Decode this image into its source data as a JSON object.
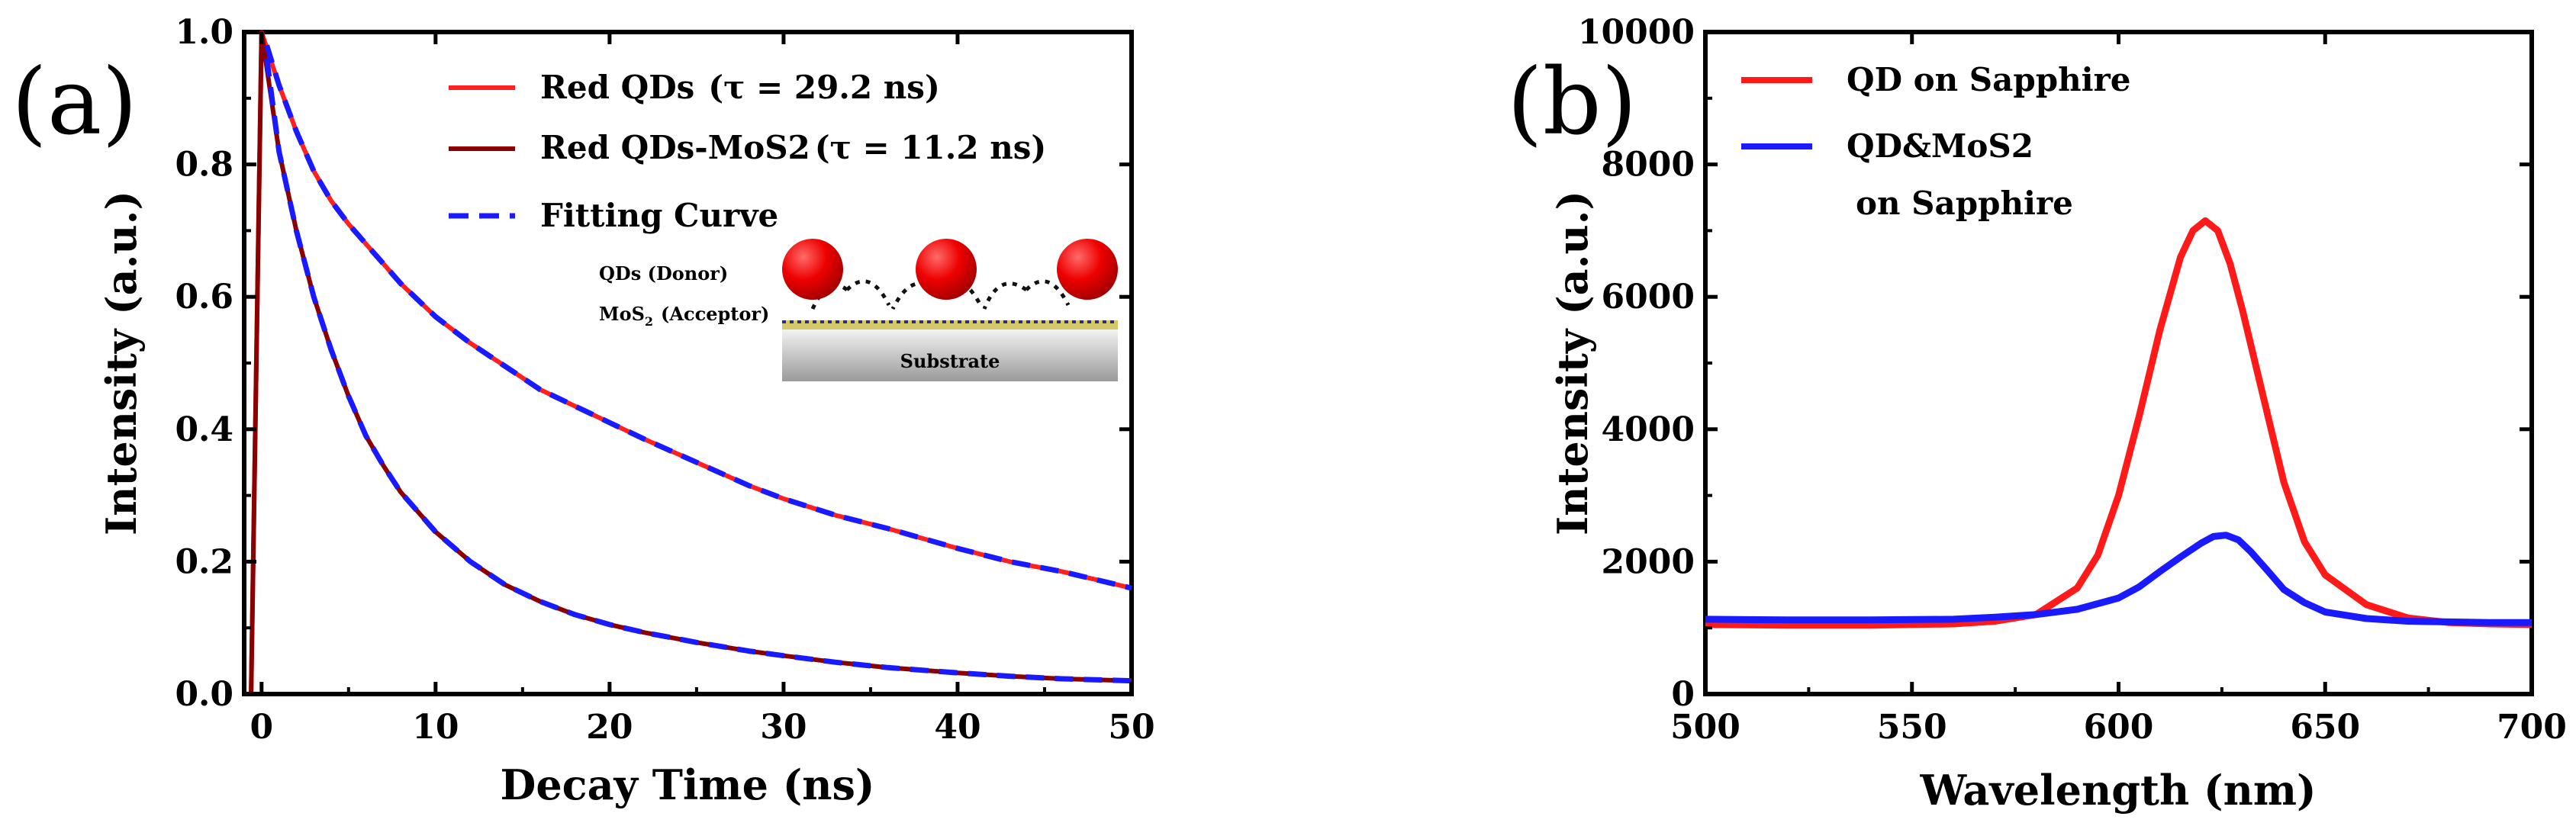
{
  "chart_data": [
    {
      "panel_label": "(a)",
      "type": "line",
      "xlabel": "Decay Time (ns)",
      "ylabel": "Intensity (a.u.)",
      "xlim": [
        -1,
        50
      ],
      "ylim": [
        0.0,
        1.0
      ],
      "xticks": [
        0,
        10,
        20,
        30,
        40,
        50
      ],
      "xtick_labels": [
        "0",
        "10",
        "20",
        "30",
        "40",
        "50"
      ],
      "yticks": [
        0.0,
        0.2,
        0.4,
        0.6,
        0.8,
        1.0
      ],
      "ytick_labels": [
        "0.0",
        "0.2",
        "0.4",
        "0.6",
        "0.8",
        "1.0"
      ],
      "series": [
        {
          "name": "Red QDs",
          "tau_label": "(τ = 29.2 ns)",
          "color": "#ff2020",
          "x": [
            0,
            1,
            2,
            3,
            4,
            5,
            6,
            7,
            8,
            10,
            12,
            14,
            16,
            18,
            20,
            22,
            25,
            28,
            30,
            33,
            36,
            40,
            43,
            46,
            50
          ],
          "y": [
            1.0,
            0.92,
            0.85,
            0.79,
            0.745,
            0.71,
            0.68,
            0.65,
            0.62,
            0.57,
            0.53,
            0.495,
            0.46,
            0.435,
            0.41,
            0.385,
            0.35,
            0.315,
            0.295,
            0.27,
            0.25,
            0.22,
            0.2,
            0.185,
            0.16
          ]
        },
        {
          "name": "Red QDs-MoS2",
          "tau_label": "(τ = 11.2 ns)",
          "color": "#8b0000",
          "x": [
            0,
            1,
            2,
            3,
            4,
            5,
            6,
            7,
            8,
            10,
            12,
            14,
            16,
            18,
            20,
            22,
            25,
            28,
            30,
            33,
            36,
            40,
            43,
            46,
            50
          ],
          "y": [
            1.0,
            0.82,
            0.7,
            0.6,
            0.52,
            0.45,
            0.39,
            0.345,
            0.305,
            0.245,
            0.2,
            0.165,
            0.14,
            0.12,
            0.105,
            0.093,
            0.078,
            0.065,
            0.058,
            0.048,
            0.04,
            0.032,
            0.027,
            0.023,
            0.02
          ]
        },
        {
          "name": "Fitting Curve",
          "color": "#1a1aff",
          "style": "dashed",
          "fits": [
            {
              "x": [
                0.3,
                1,
                2,
                3,
                4,
                5,
                6,
                7,
                8,
                10,
                12,
                14,
                16,
                18,
                20,
                22,
                25,
                28,
                30,
                33,
                36,
                40,
                43,
                46,
                50
              ],
              "y": [
                0.98,
                0.92,
                0.85,
                0.79,
                0.745,
                0.71,
                0.68,
                0.65,
                0.62,
                0.57,
                0.53,
                0.495,
                0.46,
                0.435,
                0.41,
                0.385,
                0.35,
                0.315,
                0.295,
                0.27,
                0.25,
                0.22,
                0.2,
                0.185,
                0.16
              ]
            },
            {
              "x": [
                0.3,
                1,
                2,
                3,
                4,
                5,
                6,
                7,
                8,
                10,
                12,
                14,
                16,
                18,
                20,
                22,
                25,
                28,
                30,
                33,
                36,
                40,
                43,
                46,
                50
              ],
              "y": [
                0.96,
                0.82,
                0.7,
                0.6,
                0.52,
                0.45,
                0.39,
                0.345,
                0.305,
                0.245,
                0.2,
                0.165,
                0.14,
                0.12,
                0.105,
                0.093,
                0.078,
                0.065,
                0.058,
                0.048,
                0.04,
                0.032,
                0.027,
                0.023,
                0.02
              ]
            }
          ]
        }
      ],
      "inset": {
        "donor_label": "QDs (Donor)",
        "acceptor_label": "MoS",
        "acceptor_sub": "2",
        "acceptor_suffix": "(Acceptor)",
        "substrate_label": "Substrate"
      }
    },
    {
      "panel_label": "(b)",
      "type": "line",
      "xlabel": "Wavelength (nm)",
      "ylabel": "Intensity (a.u.)",
      "xlim": [
        500,
        700
      ],
      "ylim": [
        0,
        10000
      ],
      "xticks": [
        500,
        550,
        600,
        650,
        700
      ],
      "xtick_labels": [
        "500",
        "550",
        "600",
        "650",
        "700"
      ],
      "yticks": [
        0,
        2000,
        4000,
        6000,
        8000,
        10000
      ],
      "ytick_labels": [
        "0",
        "2000",
        "4000",
        "6000",
        "8000",
        "10000"
      ],
      "series": [
        {
          "name": "QD on Sapphire",
          "color": "#ff1a1a",
          "x": [
            500,
            520,
            540,
            560,
            570,
            580,
            590,
            595,
            600,
            605,
            610,
            615,
            618,
            621,
            624,
            627,
            630,
            635,
            640,
            645,
            650,
            660,
            670,
            680,
            690,
            700
          ],
          "y": [
            1050,
            1040,
            1040,
            1060,
            1100,
            1200,
            1600,
            2100,
            3000,
            4200,
            5500,
            6600,
            7000,
            7150,
            7000,
            6500,
            5800,
            4500,
            3200,
            2300,
            1800,
            1350,
            1150,
            1080,
            1060,
            1050
          ]
        },
        {
          "name": "QD&MoS2 on Sapphire",
          "name_line1": "QD&MoS2",
          "name_line2": "on Sapphire",
          "color": "#1a1aff",
          "x": [
            500,
            520,
            540,
            560,
            570,
            580,
            590,
            600,
            605,
            610,
            615,
            620,
            623,
            626,
            629,
            632,
            636,
            640,
            645,
            650,
            660,
            670,
            680,
            690,
            700
          ],
          "y": [
            1130,
            1120,
            1120,
            1130,
            1160,
            1200,
            1280,
            1450,
            1620,
            1850,
            2070,
            2280,
            2380,
            2400,
            2330,
            2150,
            1870,
            1580,
            1380,
            1240,
            1140,
            1100,
            1090,
            1080,
            1080
          ]
        }
      ]
    }
  ]
}
